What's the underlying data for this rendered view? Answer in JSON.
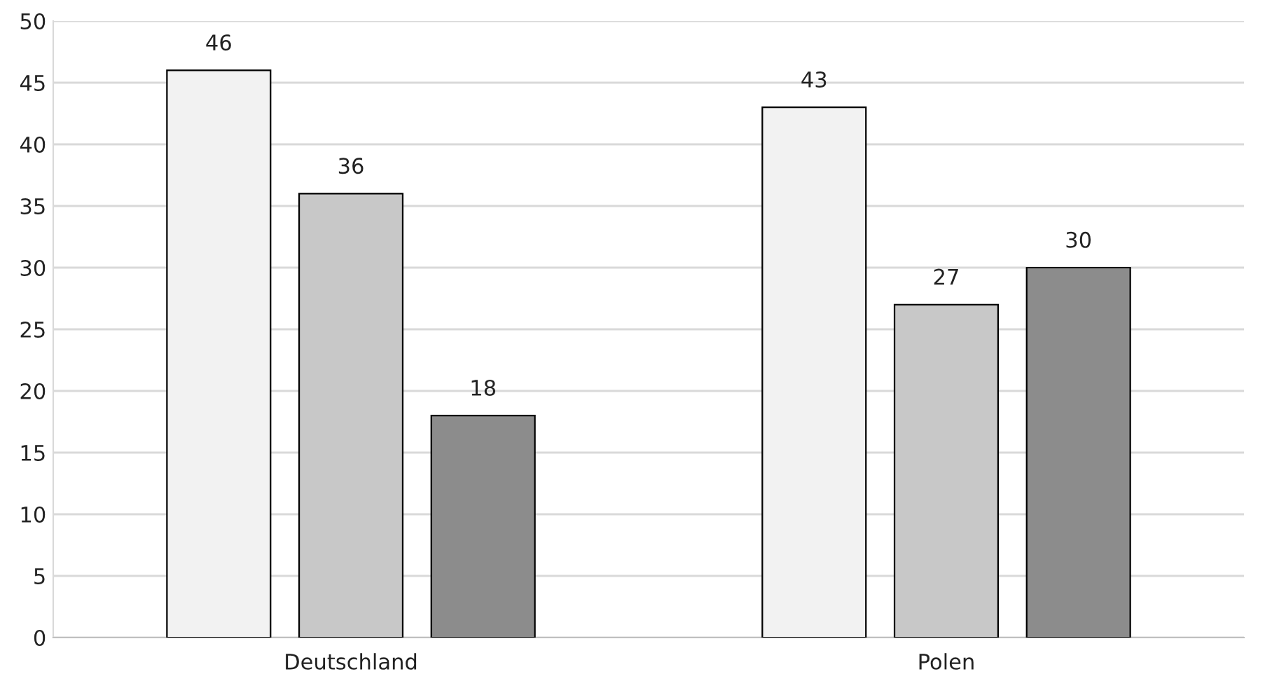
{
  "chart_data": {
    "type": "bar",
    "categories": [
      "Deutschland",
      "Polen"
    ],
    "series": [
      {
        "color": "#f2f2f2",
        "values": [
          46,
          43
        ]
      },
      {
        "color": "#c8c8c8",
        "values": [
          36,
          27
        ]
      },
      {
        "color": "#8c8c8c",
        "values": [
          18,
          30
        ]
      }
    ],
    "ylim": [
      0,
      50
    ],
    "yticks": [
      0,
      5,
      10,
      15,
      20,
      25,
      30,
      35,
      40,
      45,
      50
    ],
    "grid": "y",
    "data_labels": true
  }
}
